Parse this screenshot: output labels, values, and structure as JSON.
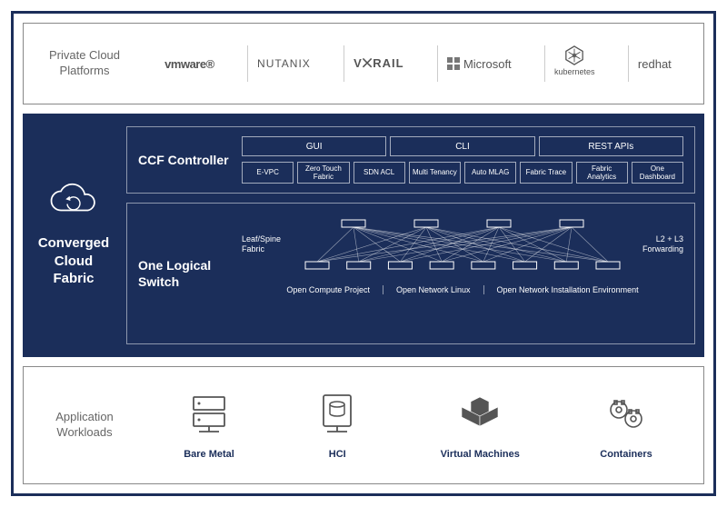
{
  "colors": {
    "navy": "#1b2e5a",
    "border_gray": "#888",
    "text_gray": "#666",
    "divider": "#ccc",
    "white": "#ffffff",
    "panel_border": "rgba(255,255,255,0.5)"
  },
  "top": {
    "label": "Private Cloud Platforms",
    "platforms": [
      {
        "name": "vmware",
        "display": "vmware®"
      },
      {
        "name": "nutanix",
        "display": "NUTANIX"
      },
      {
        "name": "vxrail",
        "display": "V⨉RAIL"
      },
      {
        "name": "microsoft",
        "display": "Microsoft"
      },
      {
        "name": "kubernetes",
        "display": "kubernetes"
      },
      {
        "name": "redhat",
        "display": "redhat"
      }
    ]
  },
  "middle": {
    "title_l1": "Converged",
    "title_l2": "Cloud",
    "title_l3": "Fabric",
    "ccf": {
      "title": "CCF Controller",
      "big": [
        "GUI",
        "CLI",
        "REST APIs"
      ],
      "small": [
        "E-VPC",
        "Zero Touch Fabric",
        "SDN ACL",
        "Multi Tenancy",
        "Auto MLAG",
        "Fabric Trace",
        "Fabric Analytics",
        "One Dashboard"
      ]
    },
    "ols": {
      "title": "One Logical Switch",
      "left_label": "Leaf/Spine Fabric",
      "right_label": "L2 + L3 Forwarding",
      "bottom": [
        "Open Compute Project",
        "Open Network Linux",
        "Open Network Installation Environment"
      ],
      "topology": {
        "spine_count": 4,
        "leaf_count": 8
      }
    }
  },
  "bottom": {
    "label": "Application Workloads",
    "items": [
      {
        "name": "bare-metal",
        "label": "Bare Metal"
      },
      {
        "name": "hci",
        "label": "HCI"
      },
      {
        "name": "virtual-machines",
        "label": "Virtual Machines"
      },
      {
        "name": "containers",
        "label": "Containers"
      }
    ]
  }
}
